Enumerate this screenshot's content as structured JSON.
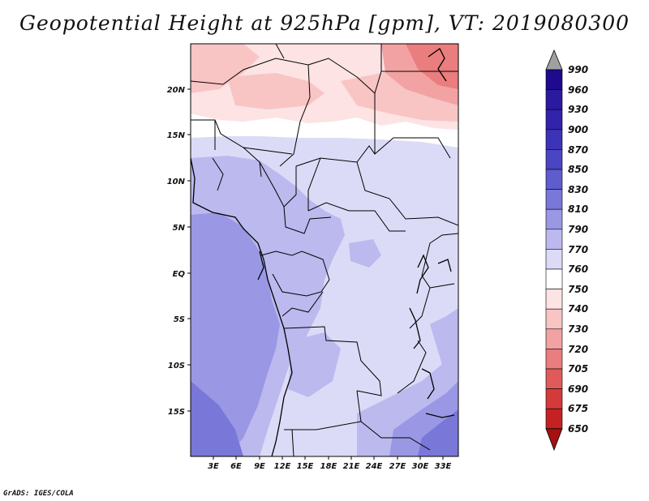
{
  "title": "Geopotential Height at 925hPa [gpm], VT: 2019080300",
  "footer": "GrADS: IGES/COLA",
  "map": {
    "lon_labels": [
      "3E",
      "6E",
      "9E",
      "12E",
      "15E",
      "18E",
      "21E",
      "24E",
      "27E",
      "30E",
      "33E"
    ],
    "lat_labels": [
      "20N",
      "15N",
      "10N",
      "5N",
      "EQ",
      "5S",
      "10S",
      "15S"
    ]
  },
  "colorbar": {
    "levels": [
      "990",
      "960",
      "930",
      "900",
      "870",
      "850",
      "830",
      "810",
      "790",
      "770",
      "760",
      "750",
      "740",
      "730",
      "720",
      "705",
      "690",
      "675",
      "650"
    ],
    "colors": {
      "top_arrow": "#a0a0a0",
      "c990": "#1d0a8c",
      "c960": "#2a1aa0",
      "c930": "#3322aa",
      "c900": "#3d33b8",
      "c870": "#4a45c2",
      "c850": "#5f5ccd",
      "c830": "#7977d8",
      "c810": "#9a98e4",
      "c790": "#bbb9ee",
      "c770": "#dcdbf7",
      "c760": "#ffffff",
      "c750": "#fde3e3",
      "c740": "#f8c4c4",
      "c730": "#f2a2a2",
      "c720": "#ea7d7d",
      "c705": "#e15a5a",
      "c690": "#d43a3a",
      "c675": "#c42222",
      "c650": "#a51010"
    }
  }
}
